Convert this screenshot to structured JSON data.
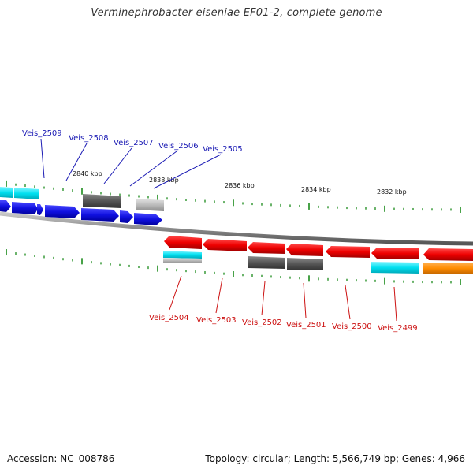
{
  "title": "Verminephrobacter eiseniae EF01-2, complete genome",
  "footer": {
    "accession": "Accession: NC_008786",
    "summary": "Topology: circular; Length: 5,566,749 bp; Genes: 4,966"
  },
  "colors": {
    "top_labels": "#1a1ab4",
    "bottom_labels": "#cc1111",
    "ticks": "#1a8a1a",
    "backbone": "#8a8a8a",
    "blue_gene": "#1010e0",
    "red_gene": "#ee0000",
    "cyan_feature": "#00e0f0",
    "dark_feature": "#555555",
    "light_feature": "#bbbbbb",
    "orange_feature": "#ff8c00"
  },
  "scale_labels": [
    "2840 kbp",
    "2838 kbp",
    "2836 kbp",
    "2834 kbp",
    "2832 kbp"
  ],
  "top_genes": [
    "Veis_2509",
    "Veis_2508",
    "Veis_2507",
    "Veis_2506",
    "Veis_2505"
  ],
  "bottom_genes": [
    "Veis_2504",
    "Veis_2503",
    "Veis_2502",
    "Veis_2501",
    "Veis_2500",
    "Veis_2499"
  ]
}
